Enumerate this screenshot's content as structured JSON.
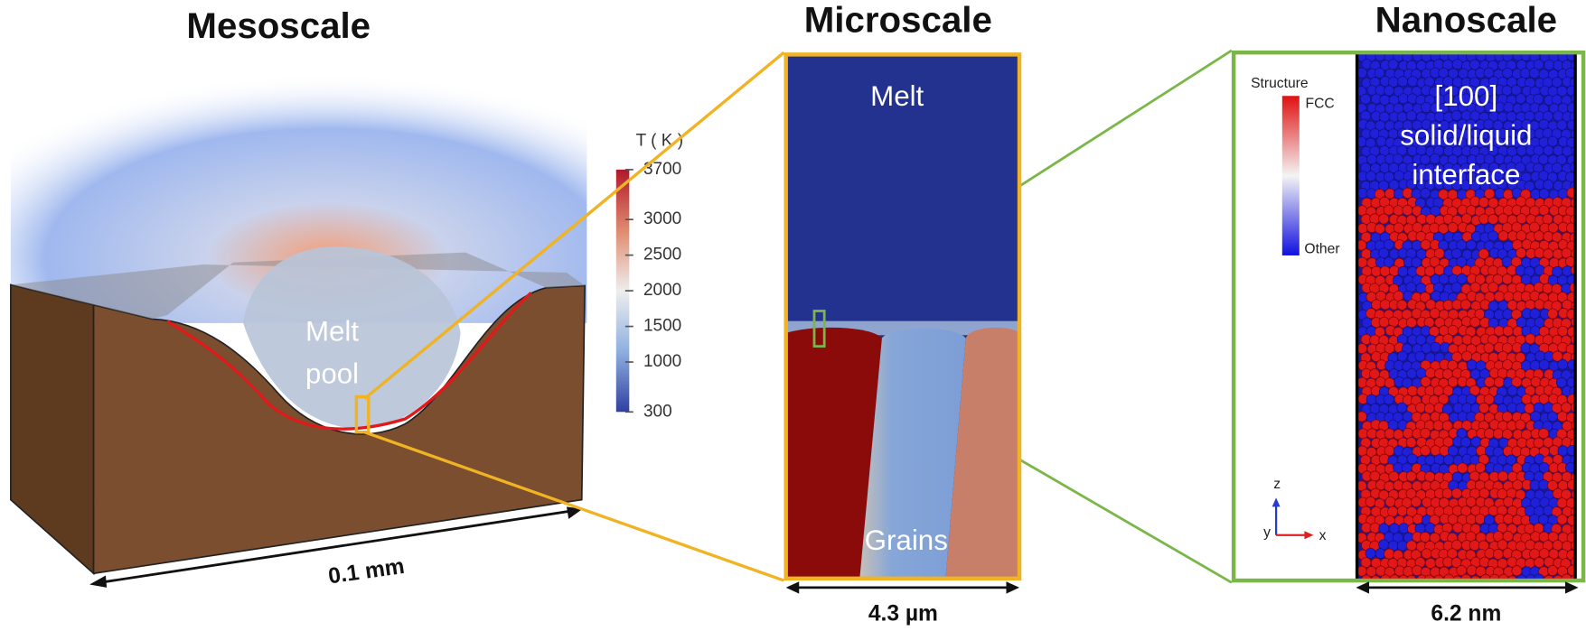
{
  "panels": [
    {
      "title": "Mesoscale",
      "label_lines": [
        "Melt",
        "pool"
      ],
      "scale": "0.1 mm",
      "colorbar": {
        "label": "T ( K )",
        "ticks": [
          3700,
          3000,
          2500,
          2000,
          1500,
          1000,
          300
        ]
      }
    },
    {
      "title": "Microscale",
      "top_label": "Melt",
      "bottom_label": "Grains",
      "scale": "4.3 µm"
    },
    {
      "title": "Nanoscale",
      "legend": {
        "title": "Structure",
        "top": "FCC",
        "bottom": "Other"
      },
      "interface_lines": [
        "[100]",
        "solid/liquid",
        "interface"
      ],
      "axes": [
        "z",
        "y",
        "x"
      ],
      "scale": "6.2 nm"
    }
  ]
}
